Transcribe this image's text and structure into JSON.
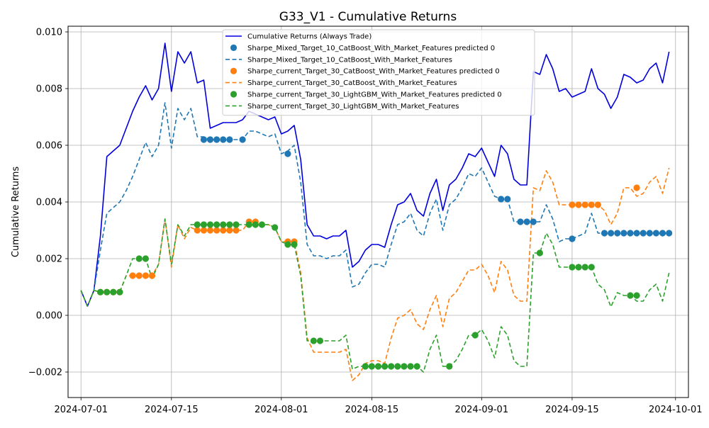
{
  "chart_data": {
    "type": "line",
    "title": "G33_V1 - Cumulative Returns",
    "xlabel": "",
    "ylabel": "Cumulative Returns",
    "x_ticks": [
      "2024-07-01",
      "2024-07-15",
      "2024-08-01",
      "2024-08-15",
      "2024-09-01",
      "2024-09-15",
      "2024-10-01"
    ],
    "y_ticks": [
      -0.002,
      0.0,
      0.002,
      0.004,
      0.006,
      0.008,
      0.01
    ],
    "y_tick_labels": [
      "−0.002",
      "0.000",
      "0.002",
      "0.004",
      "0.006",
      "0.008",
      "0.010"
    ],
    "ylim": [
      -0.0029,
      0.0102
    ],
    "xlim": [
      "2024-06-29",
      "2024-10-03"
    ],
    "grid": true,
    "legend_position": "top-center",
    "x": [
      "2024-07-01",
      "2024-07-02",
      "2024-07-03",
      "2024-07-04",
      "2024-07-05",
      "2024-07-06",
      "2024-07-07",
      "2024-07-08",
      "2024-07-09",
      "2024-07-10",
      "2024-07-11",
      "2024-07-12",
      "2024-07-13",
      "2024-07-14",
      "2024-07-15",
      "2024-07-16",
      "2024-07-17",
      "2024-07-18",
      "2024-07-19",
      "2024-07-20",
      "2024-07-21",
      "2024-07-22",
      "2024-07-23",
      "2024-07-24",
      "2024-07-25",
      "2024-07-26",
      "2024-07-27",
      "2024-07-28",
      "2024-07-29",
      "2024-07-30",
      "2024-07-31",
      "2024-08-01",
      "2024-08-02",
      "2024-08-03",
      "2024-08-04",
      "2024-08-05",
      "2024-08-06",
      "2024-08-07",
      "2024-08-08",
      "2024-08-09",
      "2024-08-10",
      "2024-08-11",
      "2024-08-12",
      "2024-08-13",
      "2024-08-14",
      "2024-08-15",
      "2024-08-16",
      "2024-08-17",
      "2024-08-18",
      "2024-08-19",
      "2024-08-20",
      "2024-08-21",
      "2024-08-22",
      "2024-08-23",
      "2024-08-24",
      "2024-08-25",
      "2024-08-26",
      "2024-08-27",
      "2024-08-28",
      "2024-08-29",
      "2024-08-30",
      "2024-08-31",
      "2024-09-01",
      "2024-09-02",
      "2024-09-03",
      "2024-09-04",
      "2024-09-05",
      "2024-09-06",
      "2024-09-07",
      "2024-09-08",
      "2024-09-09",
      "2024-09-10",
      "2024-09-11",
      "2024-09-12",
      "2024-09-13",
      "2024-09-14",
      "2024-09-15",
      "2024-09-16",
      "2024-09-17",
      "2024-09-18",
      "2024-09-19",
      "2024-09-20",
      "2024-09-21",
      "2024-09-22",
      "2024-09-23",
      "2024-09-24",
      "2024-09-25",
      "2024-09-26",
      "2024-09-27",
      "2024-09-28",
      "2024-09-29",
      "2024-09-30"
    ],
    "series": [
      {
        "name": "Cumulative Returns (Always Trade)",
        "color": "#0000dd",
        "style": "solid",
        "values": [
          0.00088,
          0.00032,
          0.00088,
          0.0028,
          0.0056,
          0.0058,
          0.006,
          0.0066,
          0.0072,
          0.0077,
          0.0081,
          0.0076,
          0.008,
          0.0096,
          0.0079,
          0.0093,
          0.0089,
          0.0093,
          0.0082,
          0.0083,
          0.0066,
          0.0067,
          0.0068,
          0.0068,
          0.0068,
          0.0069,
          0.0072,
          0.0071,
          0.007,
          0.0069,
          0.007,
          0.0064,
          0.0065,
          0.0067,
          0.0055,
          0.0032,
          0.0028,
          0.0028,
          0.0027,
          0.0028,
          0.0028,
          0.003,
          0.0017,
          0.0019,
          0.0023,
          0.0025,
          0.0025,
          0.0024,
          0.0032,
          0.0039,
          0.004,
          0.0043,
          0.0037,
          0.0035,
          0.0043,
          0.0048,
          0.0037,
          0.0046,
          0.0048,
          0.0052,
          0.0057,
          0.0056,
          0.0059,
          0.0054,
          0.0049,
          0.006,
          0.0057,
          0.0048,
          0.0046,
          0.0046,
          0.0086,
          0.0085,
          0.0092,
          0.0087,
          0.0079,
          0.008,
          0.0077,
          0.0078,
          0.0079,
          0.0087,
          0.008,
          0.0078,
          0.0073,
          0.0077,
          0.0085,
          0.0084,
          0.0082,
          0.0083,
          0.0087,
          0.0089,
          0.0082,
          0.0093
        ]
      },
      {
        "name": "Sharpe_Mixed_Target_10_CatBoost_With_Market_Features",
        "color": "#1f77b4",
        "style": "dashed",
        "values": [
          0.00088,
          0.00032,
          0.00088,
          0.0023,
          0.0036,
          0.0038,
          0.004,
          0.0044,
          0.0049,
          0.0055,
          0.0061,
          0.0056,
          0.006,
          0.0075,
          0.0059,
          0.0073,
          0.0069,
          0.0073,
          0.0063,
          0.0063,
          0.0062,
          0.0062,
          0.0062,
          0.0062,
          0.0062,
          0.0062,
          0.0065,
          0.0065,
          0.0064,
          0.0063,
          0.0064,
          0.0057,
          0.0058,
          0.006,
          0.0047,
          0.0025,
          0.0021,
          0.0021,
          0.002,
          0.0021,
          0.0021,
          0.0023,
          0.001,
          0.0011,
          0.0015,
          0.0018,
          0.0018,
          0.0017,
          0.0025,
          0.0032,
          0.0033,
          0.0036,
          0.003,
          0.0028,
          0.0036,
          0.0041,
          0.003,
          0.0039,
          0.0041,
          0.0045,
          0.005,
          0.0049,
          0.0052,
          0.0047,
          0.0042,
          0.0041,
          0.0041,
          0.0033,
          0.0033,
          0.0033,
          0.0033,
          0.0033,
          0.0039,
          0.0034,
          0.0026,
          0.0027,
          0.0027,
          0.0028,
          0.0029,
          0.0036,
          0.0029,
          0.0029,
          0.0029,
          0.0029,
          0.0029,
          0.0029,
          0.0029,
          0.0029,
          0.0029,
          0.0029,
          0.0029,
          0.0029
        ]
      },
      {
        "name": "Sharpe_current_Target_30_CatBoost_With_Market_Features",
        "color": "#ff7f0e",
        "style": "dashed",
        "values": [
          0.00088,
          0.00032,
          0.00088,
          0.00082,
          0.00082,
          0.00082,
          0.00082,
          0.0014,
          0.0014,
          0.0014,
          0.0014,
          0.0014,
          0.0018,
          0.0034,
          0.0017,
          0.0032,
          0.0027,
          0.0031,
          0.003,
          0.003,
          0.003,
          0.003,
          0.003,
          0.003,
          0.003,
          0.003,
          0.0033,
          0.0033,
          0.0032,
          0.0032,
          0.0031,
          0.0026,
          0.0026,
          0.0026,
          0.0015,
          -0.0008,
          -0.0013,
          -0.0013,
          -0.0013,
          -0.0013,
          -0.0013,
          -0.0012,
          -0.0023,
          -0.0021,
          -0.0017,
          -0.0016,
          -0.0016,
          -0.0017,
          -0.0008,
          -0.0001,
          0.0,
          0.0002,
          -0.0003,
          -0.0005,
          0.0002,
          0.0007,
          -0.0004,
          0.0006,
          0.0008,
          0.0012,
          0.0016,
          0.0016,
          0.0018,
          0.0014,
          0.0008,
          0.0019,
          0.0016,
          0.0007,
          0.0005,
          0.0005,
          0.0045,
          0.0044,
          0.0051,
          0.0047,
          0.0039,
          0.0039,
          0.0039,
          0.0039,
          0.0039,
          0.0039,
          0.0039,
          0.0037,
          0.0032,
          0.0036,
          0.0045,
          0.0045,
          0.0042,
          0.0043,
          0.0047,
          0.0049,
          0.0043,
          0.0052
        ]
      },
      {
        "name": "Sharpe_current_Target_30_LightGBM_With_Market_Features",
        "color": "#2ca02c",
        "style": "dashed",
        "values": [
          0.00088,
          0.00032,
          0.00088,
          0.00082,
          0.00082,
          0.00082,
          0.00082,
          0.0014,
          0.002,
          0.002,
          0.002,
          0.0013,
          0.0018,
          0.0034,
          0.0018,
          0.0032,
          0.0028,
          0.0032,
          0.0032,
          0.0032,
          0.0032,
          0.0032,
          0.0032,
          0.0032,
          0.0032,
          0.0032,
          0.0032,
          0.0032,
          0.0032,
          0.0032,
          0.0031,
          0.0026,
          0.0025,
          0.0025,
          0.0014,
          -0.0009,
          -0.0009,
          -0.0009,
          -0.0009,
          -0.0009,
          -0.0009,
          -0.0007,
          -0.0019,
          -0.0018,
          -0.0018,
          -0.0018,
          -0.0018,
          -0.0018,
          -0.0018,
          -0.0018,
          -0.0018,
          -0.0018,
          -0.0018,
          -0.002,
          -0.0012,
          -0.0007,
          -0.0018,
          -0.0018,
          -0.0016,
          -0.0012,
          -0.0007,
          -0.0007,
          -0.0005,
          -0.0009,
          -0.0015,
          -0.0004,
          -0.0007,
          -0.0016,
          -0.0018,
          -0.0018,
          0.0022,
          0.0022,
          0.0029,
          0.0025,
          0.0017,
          0.0017,
          0.0017,
          0.0017,
          0.0017,
          0.0017,
          0.0011,
          0.0009,
          0.0003,
          0.0008,
          0.0007,
          0.0007,
          0.0005,
          0.0005,
          0.0009,
          0.0011,
          0.0005,
          0.0015
        ]
      }
    ],
    "markers": [
      {
        "name": "Sharpe_Mixed_Target_10_CatBoost_With_Market_Features predicted 0",
        "color": "#1f77b4",
        "x": [
          "2024-07-20",
          "2024-07-21",
          "2024-07-22",
          "2024-07-23",
          "2024-07-24",
          "2024-07-26",
          "2024-08-02",
          "2024-09-04",
          "2024-09-05",
          "2024-09-07",
          "2024-09-08",
          "2024-09-09",
          "2024-09-15",
          "2024-09-20",
          "2024-09-21",
          "2024-09-22",
          "2024-09-23",
          "2024-09-24",
          "2024-09-25",
          "2024-09-26",
          "2024-09-27",
          "2024-09-28",
          "2024-09-29",
          "2024-09-30"
        ],
        "values": [
          0.0062,
          0.0062,
          0.0062,
          0.0062,
          0.0062,
          0.0062,
          0.0057,
          0.0041,
          0.0041,
          0.0033,
          0.0033,
          0.0033,
          0.0027,
          0.0029,
          0.0029,
          0.0029,
          0.0029,
          0.0029,
          0.0029,
          0.0029,
          0.0029,
          0.0029,
          0.0029,
          0.0029
        ]
      },
      {
        "name": "Sharpe_current_Target_30_CatBoost_With_Market_Features predicted 0",
        "color": "#ff7f0e",
        "x": [
          "2024-07-04",
          "2024-07-05",
          "2024-07-06",
          "2024-07-07",
          "2024-07-09",
          "2024-07-10",
          "2024-07-11",
          "2024-07-12",
          "2024-07-19",
          "2024-07-20",
          "2024-07-21",
          "2024-07-22",
          "2024-07-23",
          "2024-07-24",
          "2024-07-25",
          "2024-07-27",
          "2024-07-28",
          "2024-08-02",
          "2024-08-03",
          "2024-09-15",
          "2024-09-16",
          "2024-09-17",
          "2024-09-18",
          "2024-09-19",
          "2024-09-25"
        ],
        "values": [
          0.00082,
          0.00082,
          0.00082,
          0.00082,
          0.0014,
          0.0014,
          0.0014,
          0.0014,
          0.003,
          0.003,
          0.003,
          0.003,
          0.003,
          0.003,
          0.003,
          0.0033,
          0.0033,
          0.0026,
          0.0026,
          0.0039,
          0.0039,
          0.0039,
          0.0039,
          0.0039,
          0.0045
        ]
      },
      {
        "name": "Sharpe_current_Target_30_LightGBM_With_Market_Features predicted 0",
        "color": "#2ca02c",
        "x": [
          "2024-07-04",
          "2024-07-05",
          "2024-07-06",
          "2024-07-07",
          "2024-07-10",
          "2024-07-11",
          "2024-07-19",
          "2024-07-20",
          "2024-07-21",
          "2024-07-22",
          "2024-07-23",
          "2024-07-24",
          "2024-07-25",
          "2024-07-27",
          "2024-07-28",
          "2024-07-29",
          "2024-07-31",
          "2024-08-02",
          "2024-08-03",
          "2024-08-06",
          "2024-08-07",
          "2024-08-14",
          "2024-08-15",
          "2024-08-16",
          "2024-08-17",
          "2024-08-18",
          "2024-08-19",
          "2024-08-20",
          "2024-08-21",
          "2024-08-22",
          "2024-08-27",
          "2024-08-31",
          "2024-09-10",
          "2024-09-15",
          "2024-09-16",
          "2024-09-17",
          "2024-09-18",
          "2024-09-24",
          "2024-09-25"
        ],
        "values": [
          0.00082,
          0.00082,
          0.00082,
          0.00082,
          0.002,
          0.002,
          0.0032,
          0.0032,
          0.0032,
          0.0032,
          0.0032,
          0.0032,
          0.0032,
          0.0032,
          0.0032,
          0.0032,
          0.0031,
          0.0025,
          0.0025,
          -0.0009,
          -0.0009,
          -0.0018,
          -0.0018,
          -0.0018,
          -0.0018,
          -0.0018,
          -0.0018,
          -0.0018,
          -0.0018,
          -0.0018,
          -0.0018,
          -0.0007,
          0.0022,
          0.0017,
          0.0017,
          0.0017,
          0.0017,
          0.0007,
          0.0007
        ]
      }
    ],
    "legend": [
      {
        "label": "Cumulative Returns (Always Trade)",
        "kind": "line",
        "color": "#0000dd",
        "style": "solid"
      },
      {
        "label": "Sharpe_Mixed_Target_10_CatBoost_With_Market_Features predicted 0",
        "kind": "marker",
        "color": "#1f77b4"
      },
      {
        "label": "Sharpe_Mixed_Target_10_CatBoost_With_Market_Features",
        "kind": "line",
        "color": "#1f77b4",
        "style": "dashed"
      },
      {
        "label": "Sharpe_current_Target_30_CatBoost_With_Market_Features predicted 0",
        "kind": "marker",
        "color": "#ff7f0e"
      },
      {
        "label": "Sharpe_current_Target_30_CatBoost_With_Market_Features",
        "kind": "line",
        "color": "#ff7f0e",
        "style": "dashed"
      },
      {
        "label": "Sharpe_current_Target_30_LightGBM_With_Market_Features predicted 0",
        "kind": "marker",
        "color": "#2ca02c"
      },
      {
        "label": "Sharpe_current_Target_30_LightGBM_With_Market_Features",
        "kind": "line",
        "color": "#2ca02c",
        "style": "dashed"
      }
    ]
  }
}
